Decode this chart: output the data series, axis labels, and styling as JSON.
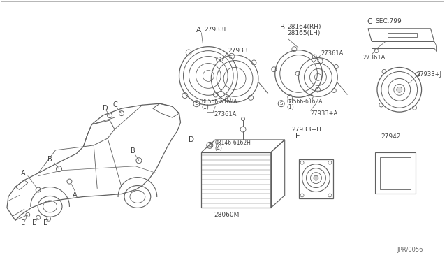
{
  "bg_color": "#ffffff",
  "lc": "#606060",
  "tc": "#404040",
  "fig_w": 6.4,
  "fig_h": 3.72,
  "dpi": 100,
  "border_color": "#888888",
  "annotations": {
    "sec_A_label": "A",
    "sec_A_part1": "27933F",
    "sec_A_part2": "27933",
    "sec_A_screw": "08566-6162A",
    "sec_A_screw2": "(1)",
    "sec_A_clip": "27361A",
    "sec_B_label": "B",
    "sec_B_part1": "28164(RH)",
    "sec_B_part2": "28165(LH)",
    "sec_B_screw": "08566-6162A",
    "sec_B_screw2": "(1)",
    "sec_B_spk": "27933+A",
    "sec_B_clip": "27361A",
    "sec_C_label": "C",
    "sec_C_sec": "SEC.799",
    "sec_C_clip": "27361A",
    "sec_C_spk": "27933+J",
    "sec_D_label": "D",
    "sec_D_bolt": "08146-6162H",
    "sec_D_bolt2": "(4)",
    "sec_D_amp": "28060M",
    "sec_E_label": "E",
    "sec_E_spk": "27933+H",
    "sec_F_part": "27942",
    "diagram_ref": "JPR/0056",
    "car_A1": "A",
    "car_A2": "A",
    "car_B1": "B",
    "car_B2": "B",
    "car_C": "C",
    "car_D": "D",
    "car_E1": "E",
    "car_E2": "E",
    "car_E3": "E"
  }
}
